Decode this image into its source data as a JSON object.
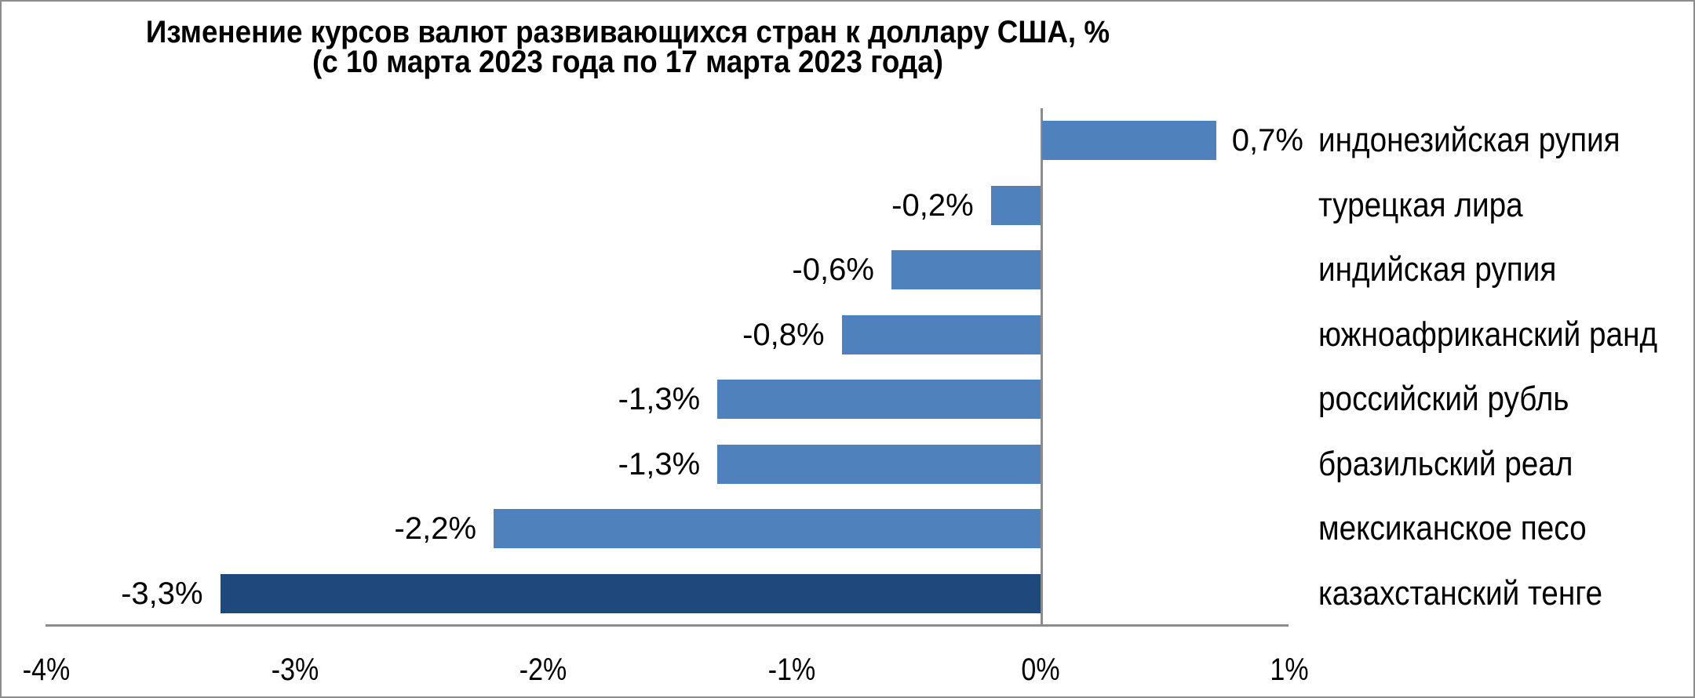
{
  "chart_data": {
    "type": "bar",
    "orientation": "horizontal",
    "title": "Изменение курсов валют развивающихся стран к доллару США, %",
    "subtitle": "(с 10 марта 2023 года по 17 марта 2023 года)",
    "categories": [
      "индонезийская рупия",
      "турецкая лира",
      "индийская рупия",
      "южноафриканский ранд",
      "российский рубль",
      "бразильский реал",
      "мексиканское песо",
      "казахстанский тенге"
    ],
    "values": [
      0.7,
      -0.2,
      -0.6,
      -0.8,
      -1.3,
      -1.3,
      -2.2,
      -3.3
    ],
    "value_labels": [
      "0,7%",
      "-0,2%",
      "-0,6%",
      "-0,8%",
      "-1,3%",
      "-1,3%",
      "-2,2%",
      "-3,3%"
    ],
    "xlabel": "",
    "ylabel": "",
    "xlim": [
      -4,
      1
    ],
    "x_ticks": [
      "-4%",
      "-3%",
      "-2%",
      "-1%",
      "0%",
      "1%"
    ],
    "grid": false,
    "legend": "none",
    "colors": {
      "default_bar": "#4f81bd",
      "highlight_bar": "#1f497d",
      "axis": "#8c8c8c",
      "text": "#000000"
    },
    "highlighted_category": "казахстанский тенге"
  }
}
